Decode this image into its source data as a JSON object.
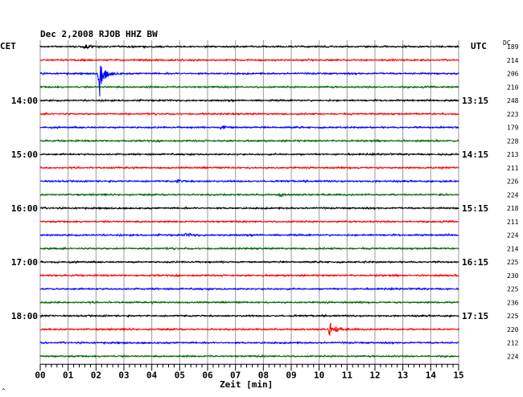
{
  "chart_data": {
    "type": "line",
    "title": "Dec 2,2008   RJOB HHZ BW",
    "left_zone": "CET",
    "right_zone": "UTC",
    "dc_header": "DC",
    "xlabel": "Zeit [min]",
    "x_ticks": [
      "00",
      "01",
      "02",
      "03",
      "04",
      "05",
      "06",
      "07",
      "08",
      "09",
      "10",
      "11",
      "12",
      "13",
      "14",
      "15"
    ],
    "xlim": [
      0,
      15
    ],
    "grid": true,
    "trace_colors": [
      "#000000",
      "#ff0000",
      "#0000ff",
      "#006600"
    ],
    "left_hour_labels": [
      {
        "row": 4,
        "label": "14:00"
      },
      {
        "row": 8,
        "label": "15:00"
      },
      {
        "row": 12,
        "label": "16:00"
      },
      {
        "row": 16,
        "label": "17:00"
      },
      {
        "row": 20,
        "label": "18:00"
      }
    ],
    "right_hour_labels": [
      {
        "row": 4,
        "label": "13:15"
      },
      {
        "row": 8,
        "label": "14:15"
      },
      {
        "row": 12,
        "label": "15:15"
      },
      {
        "row": 16,
        "label": "16:15"
      },
      {
        "row": 20,
        "label": "17:15"
      }
    ],
    "dc_offsets": [
      "189",
      "214",
      "206",
      "210",
      "248",
      "223",
      "179",
      "228",
      "213",
      "211",
      "226",
      "224",
      "218",
      "211",
      "224",
      "214",
      "225",
      "230",
      "225",
      "236",
      "225",
      "220",
      "212",
      "224"
    ],
    "events": [
      {
        "row": 2,
        "minute": 2.1,
        "amplitude": "large"
      },
      {
        "row": 21,
        "minute": 10.4,
        "amplitude": "medium"
      },
      {
        "row": 0,
        "minute": 1.6,
        "amplitude": "small"
      },
      {
        "row": 6,
        "minute": 6.5,
        "amplitude": "small"
      },
      {
        "row": 11,
        "minute": 8.6,
        "amplitude": "small"
      },
      {
        "row": 14,
        "minute": 5.2,
        "amplitude": "small"
      },
      {
        "row": 10,
        "minute": 4.9,
        "amplitude": "small"
      }
    ],
    "footer_mark": "^"
  }
}
